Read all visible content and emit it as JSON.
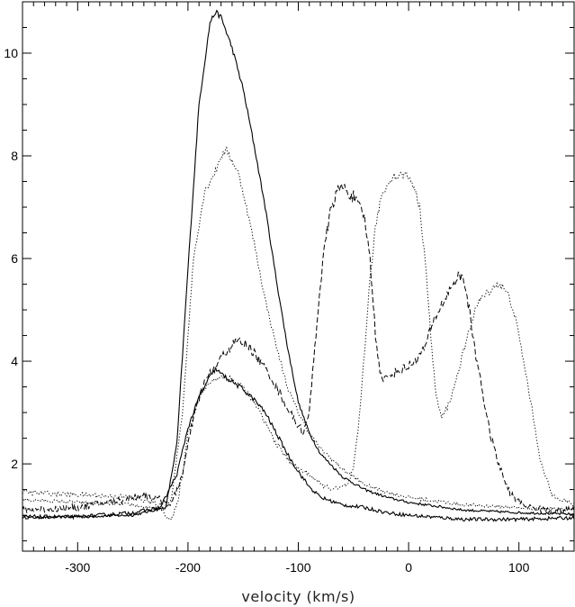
{
  "chart_data": {
    "type": "line",
    "title": "",
    "xlabel": "velocity (km/s)",
    "ylabel": "",
    "xlim": [
      -350,
      150
    ],
    "ylim": [
      0.3,
      11.0
    ],
    "x_ticks": [
      -300,
      -200,
      -100,
      0,
      100
    ],
    "x_tick_labels": [
      "-300",
      "-200",
      "-100",
      "0",
      "100"
    ],
    "y_ticks": [
      2,
      4,
      6,
      8,
      10
    ],
    "y_tick_labels": [
      "2",
      "4",
      "6",
      "8",
      "10"
    ],
    "grid": false,
    "legend": "none",
    "series": [
      {
        "style": "solid",
        "noise": 0.02,
        "x": [
          -350,
          -300,
          -250,
          -220,
          -210,
          -200,
          -190,
          -180,
          -175,
          -170,
          -165,
          -160,
          -150,
          -140,
          -130,
          -120,
          -110,
          -100,
          -90,
          -80,
          -60,
          -40,
          -20,
          0,
          50,
          100,
          150
        ],
        "y": [
          0.95,
          0.97,
          1.0,
          1.15,
          2.4,
          5.8,
          9.0,
          10.6,
          10.8,
          10.7,
          10.4,
          10.1,
          9.3,
          8.2,
          7.0,
          5.6,
          4.3,
          3.2,
          2.6,
          2.2,
          1.75,
          1.5,
          1.35,
          1.25,
          1.1,
          1.05,
          1.02
        ]
      },
      {
        "style": "dotted",
        "noise": 0.03,
        "x": [
          -350,
          -300,
          -250,
          -225,
          -215,
          -205,
          -195,
          -185,
          -175,
          -170,
          -165,
          -160,
          -155,
          -150,
          -140,
          -130,
          -120,
          -110,
          -100,
          -90,
          -80,
          -60,
          -40,
          -20,
          0,
          50,
          100,
          150
        ],
        "y": [
          1.3,
          1.25,
          1.2,
          1.1,
          1.3,
          3.0,
          6.0,
          7.3,
          7.7,
          8.0,
          8.1,
          7.9,
          7.7,
          7.3,
          6.3,
          5.2,
          4.3,
          3.5,
          3.0,
          2.6,
          2.3,
          1.9,
          1.6,
          1.45,
          1.35,
          1.2,
          1.15,
          1.12
        ]
      },
      {
        "style": "solid",
        "noise": 0.03,
        "x": [
          -350,
          -300,
          -250,
          -225,
          -210,
          -200,
          -190,
          -180,
          -175,
          -170,
          -160,
          -150,
          -140,
          -130,
          -120,
          -110,
          -100,
          -90,
          -80,
          -60,
          -40,
          -20,
          0,
          50,
          100,
          150
        ],
        "y": [
          0.97,
          0.97,
          1.05,
          1.15,
          1.8,
          2.7,
          3.3,
          3.7,
          3.85,
          3.75,
          3.6,
          3.45,
          3.25,
          3.0,
          2.6,
          2.2,
          1.85,
          1.55,
          1.35,
          1.2,
          1.15,
          1.05,
          1.0,
          0.92,
          0.92,
          0.95
        ]
      },
      {
        "style": "dotted",
        "noise": 0.04,
        "x": [
          -350,
          -300,
          -250,
          -225,
          -220,
          -215,
          -210,
          -205,
          -200,
          -190,
          -180,
          -170,
          -160,
          -150,
          -140,
          -130,
          -120,
          -110,
          -100,
          -95,
          -90,
          -85,
          -80,
          -75,
          -65,
          -55,
          -50,
          -45,
          -40,
          -35,
          -30,
          -25,
          -20,
          -15,
          -10,
          -5,
          0,
          5,
          10,
          15,
          20,
          25,
          30,
          35,
          40,
          45,
          50,
          55,
          60,
          65,
          70,
          75,
          80,
          85,
          90,
          95,
          100,
          110,
          120,
          130,
          150
        ],
        "y": [
          1.45,
          1.4,
          1.35,
          1.2,
          1.0,
          0.9,
          1.2,
          1.8,
          2.6,
          3.3,
          3.6,
          3.7,
          3.65,
          3.5,
          3.2,
          2.8,
          2.4,
          2.1,
          1.9,
          1.85,
          1.8,
          1.7,
          1.6,
          1.55,
          1.5,
          1.6,
          1.9,
          2.8,
          4.2,
          5.6,
          6.6,
          7.2,
          7.4,
          7.6,
          7.6,
          7.65,
          7.6,
          7.4,
          7.0,
          6.0,
          4.5,
          3.3,
          2.9,
          3.1,
          3.4,
          3.8,
          4.2,
          4.6,
          5.0,
          5.2,
          5.3,
          5.4,
          5.5,
          5.45,
          5.3,
          5.0,
          4.5,
          3.3,
          2.0,
          1.4,
          1.2
        ]
      },
      {
        "style": "dashed",
        "noise": 0.06,
        "x": [
          -350,
          -300,
          -260,
          -240,
          -225,
          -215,
          -205,
          -195,
          -185,
          -175,
          -165,
          -155,
          -145,
          -135,
          -125,
          -115,
          -105,
          -95,
          -90,
          -85,
          -80,
          -75,
          -70,
          -65,
          -60,
          -55,
          -50,
          -45,
          -40,
          -35,
          -30,
          -25,
          -20,
          -15,
          -10,
          -5,
          0,
          5,
          10,
          15,
          20,
          25,
          30,
          35,
          40,
          45,
          50,
          55,
          60,
          65,
          70,
          75,
          80,
          85,
          90,
          95,
          100,
          105,
          110,
          115,
          120,
          130,
          150
        ],
        "y": [
          1.1,
          1.15,
          1.3,
          1.4,
          1.3,
          1.2,
          1.8,
          2.9,
          3.6,
          3.9,
          4.2,
          4.4,
          4.3,
          4.0,
          3.7,
          3.3,
          2.9,
          2.6,
          3.0,
          4.3,
          5.5,
          6.4,
          7.0,
          7.3,
          7.4,
          7.3,
          7.2,
          7.0,
          6.8,
          6.0,
          4.5,
          3.7,
          3.65,
          3.75,
          3.8,
          3.85,
          3.9,
          4.0,
          4.1,
          4.3,
          4.6,
          4.9,
          5.1,
          5.3,
          5.5,
          5.65,
          5.6,
          5.0,
          4.2,
          3.7,
          3.0,
          2.5,
          2.1,
          1.8,
          1.5,
          1.35,
          1.25,
          1.2,
          1.15,
          1.15,
          1.1,
          1.1,
          1.1
        ]
      }
    ]
  }
}
